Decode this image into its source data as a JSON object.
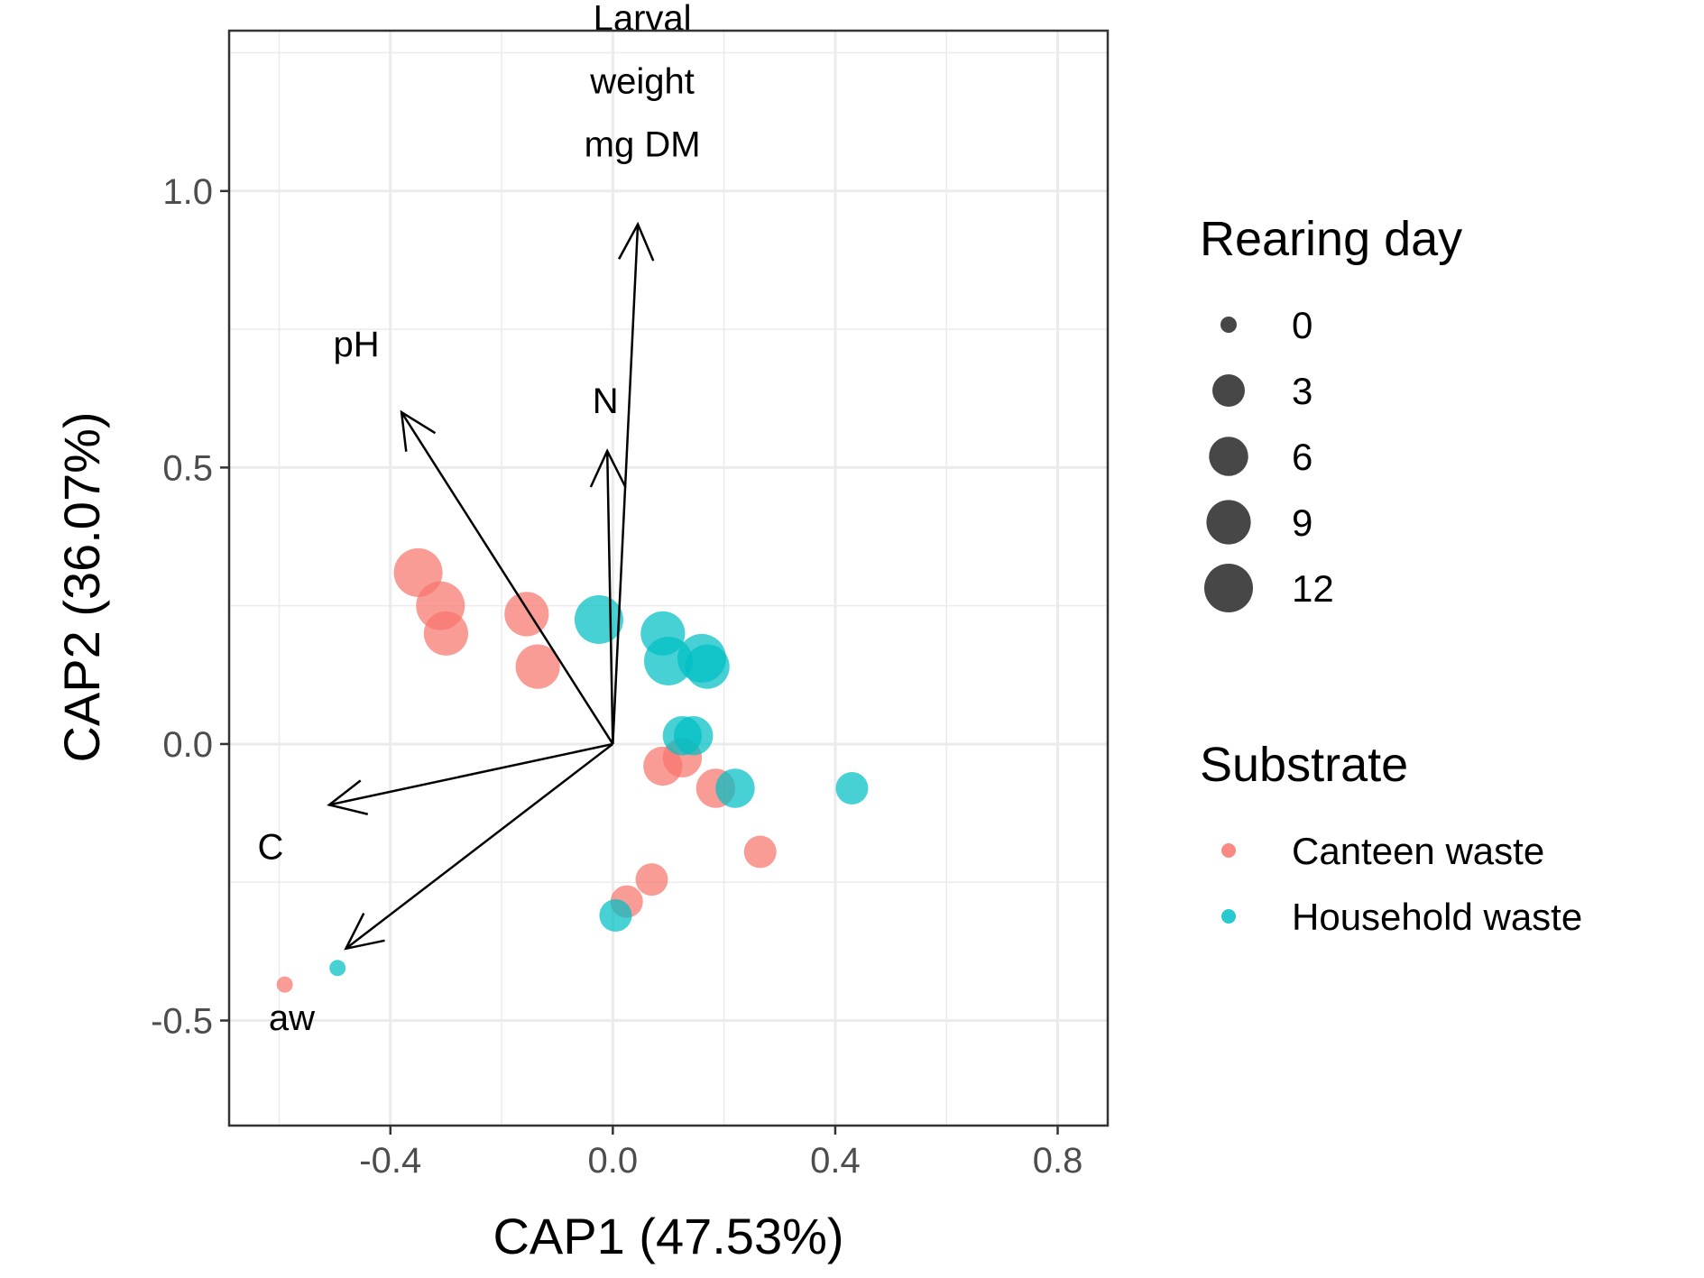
{
  "chart_data": {
    "type": "scatter",
    "xlabel": "CAP1 (47.53%)",
    "ylabel": "CAP2 (36.07%)",
    "xlim": [
      -0.69,
      0.89
    ],
    "ylim": [
      -0.69,
      1.29
    ],
    "x_ticks": [
      -0.4,
      0.0,
      0.4,
      0.8
    ],
    "x_tick_labels": [
      "-0.4",
      "0.0",
      "0.4",
      "0.8"
    ],
    "y_ticks": [
      -0.5,
      0.0,
      0.5,
      1.0
    ],
    "y_tick_labels": [
      "-0.5",
      "0.0",
      "0.5",
      "1.0"
    ],
    "grid": true,
    "colors": {
      "Canteen waste": "#f8766d",
      "Household waste": "#00bfc4"
    },
    "series": [
      {
        "name": "Canteen waste",
        "points": [
          {
            "x": -0.35,
            "y": 0.31,
            "day": 12
          },
          {
            "x": -0.31,
            "y": 0.25,
            "day": 12
          },
          {
            "x": -0.3,
            "y": 0.2,
            "day": 9
          },
          {
            "x": -0.155,
            "y": 0.235,
            "day": 9
          },
          {
            "x": -0.135,
            "y": 0.14,
            "day": 9
          },
          {
            "x": 0.09,
            "y": -0.04,
            "day": 6
          },
          {
            "x": 0.125,
            "y": -0.025,
            "day": 6
          },
          {
            "x": 0.185,
            "y": -0.08,
            "day": 6
          },
          {
            "x": 0.265,
            "y": -0.195,
            "day": 3
          },
          {
            "x": 0.07,
            "y": -0.245,
            "day": 3
          },
          {
            "x": 0.025,
            "y": -0.285,
            "day": 3
          },
          {
            "x": -0.59,
            "y": -0.435,
            "day": 0
          }
        ]
      },
      {
        "name": "Household waste",
        "points": [
          {
            "x": -0.025,
            "y": 0.225,
            "day": 12
          },
          {
            "x": 0.09,
            "y": 0.2,
            "day": 9
          },
          {
            "x": 0.1,
            "y": 0.15,
            "day": 12
          },
          {
            "x": 0.16,
            "y": 0.155,
            "day": 12
          },
          {
            "x": 0.17,
            "y": 0.14,
            "day": 9
          },
          {
            "x": 0.125,
            "y": 0.015,
            "day": 6
          },
          {
            "x": 0.145,
            "y": 0.015,
            "day": 6
          },
          {
            "x": 0.22,
            "y": -0.08,
            "day": 6
          },
          {
            "x": 0.43,
            "y": -0.08,
            "day": 3
          },
          {
            "x": 0.005,
            "y": -0.31,
            "day": 3
          },
          {
            "x": -0.495,
            "y": -0.405,
            "day": 0
          }
        ]
      }
    ],
    "vectors": [
      {
        "name": "Larval weight mg DM",
        "label_lines": [
          "Larval",
          "weight",
          "mg DM"
        ],
        "x": 0.045,
        "y": 0.94
      },
      {
        "name": "pH",
        "label_lines": [
          "pH"
        ],
        "x": -0.38,
        "y": 0.6
      },
      {
        "name": "N",
        "label_lines": [
          "N"
        ],
        "x": -0.01,
        "y": 0.53
      },
      {
        "name": "C",
        "label_lines": [
          "C"
        ],
        "x": -0.51,
        "y": -0.11
      },
      {
        "name": "aw",
        "label_lines": [
          "aw"
        ],
        "x": -0.48,
        "y": -0.37
      }
    ],
    "legends": {
      "size": {
        "title": "Rearing day",
        "entries": [
          "0",
          "3",
          "6",
          "9",
          "12"
        ],
        "values": [
          0,
          3,
          6,
          9,
          12
        ]
      },
      "color": {
        "title": "Substrate",
        "entries": [
          "Canteen waste",
          "Household waste"
        ]
      }
    }
  }
}
